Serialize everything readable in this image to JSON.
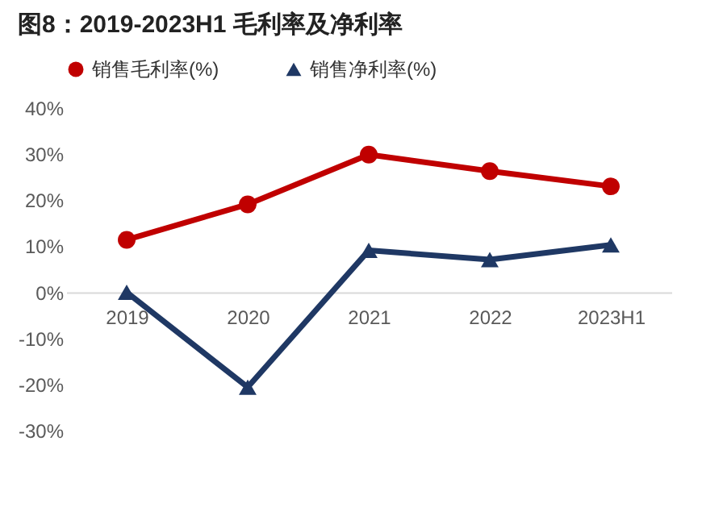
{
  "chart_data": {
    "type": "line",
    "title": "图8：2019-2023H1 毛利率及净利率",
    "categories": [
      "2019",
      "2020",
      "2021",
      "2022",
      "2023H1"
    ],
    "series": [
      {
        "name": "销售毛利率(%)",
        "color": "#c00000",
        "marker": "circle",
        "values": [
          11.4,
          19.1,
          29.9,
          26.3,
          23.0
        ]
      },
      {
        "name": "销售净利率(%)",
        "color": "#1f3864",
        "marker": "triangle",
        "values": [
          0,
          -20.6,
          9.1,
          7.1,
          10.3
        ]
      }
    ],
    "ylim": [
      -30,
      40
    ],
    "yticks": [
      {
        "value": -30,
        "label": "-30%"
      },
      {
        "value": -20,
        "label": "-20%"
      },
      {
        "value": -10,
        "label": "-10%"
      },
      {
        "value": 0,
        "label": "0%"
      },
      {
        "value": 10,
        "label": "10%"
      },
      {
        "value": 20,
        "label": "20%"
      },
      {
        "value": 30,
        "label": "30%"
      },
      {
        "value": 40,
        "label": "40%"
      }
    ],
    "grid": false,
    "legend": "top"
  }
}
